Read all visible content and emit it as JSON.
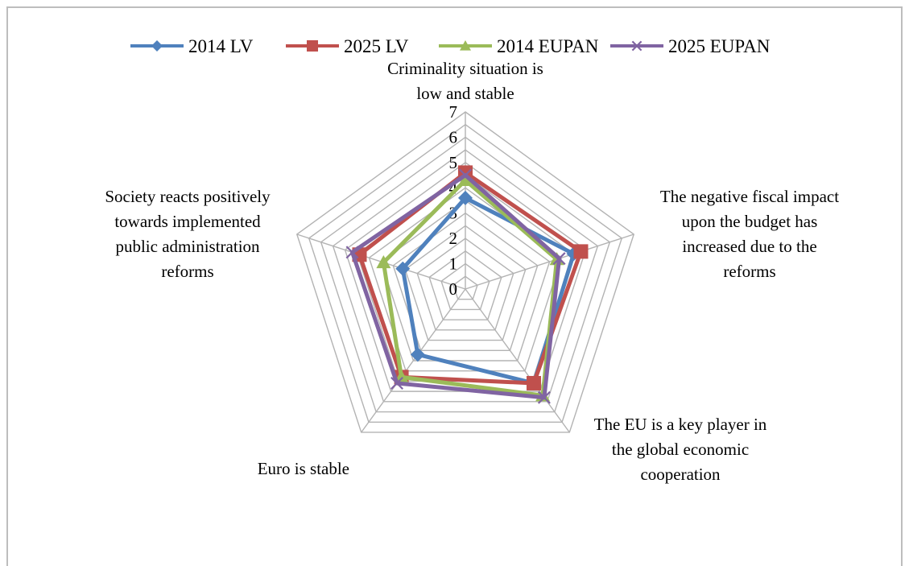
{
  "chart_data": {
    "type": "radar",
    "axes": [
      [
        "Criminality situation is",
        "low and stable"
      ],
      [
        "The negative fiscal impact",
        "upon the budget has",
        "increased due to the",
        "reforms"
      ],
      [
        "The EU is a key player in",
        "the global economic",
        "cooperation"
      ],
      [
        "Euro is stable"
      ],
      [
        "Society reacts positively",
        "towards implemented",
        "public administration",
        "reforms"
      ]
    ],
    "rlim": [
      0,
      7
    ],
    "ticks": [
      "0",
      "1",
      "2",
      "3",
      "4",
      "5",
      "6",
      "7"
    ],
    "gridlines_major": 7,
    "gridlines_minor": true,
    "legend_position": "top",
    "series": [
      {
        "name": "2014 LV",
        "color": "#4f81bd",
        "marker": "diamond",
        "values": [
          3.6,
          4.5,
          4.6,
          3.2,
          2.6
        ]
      },
      {
        "name": "2025 LV",
        "color": "#c0504d",
        "marker": "square",
        "values": [
          4.6,
          4.8,
          4.6,
          4.3,
          4.4
        ]
      },
      {
        "name": "2014 EUPAN",
        "color": "#9bbb59",
        "marker": "triangle",
        "values": [
          4.3,
          3.8,
          5.2,
          4.3,
          3.4
        ]
      },
      {
        "name": "2025 EUPAN",
        "color": "#8064a2",
        "marker": "x",
        "values": [
          4.5,
          3.9,
          5.3,
          4.6,
          4.7
        ]
      }
    ]
  }
}
